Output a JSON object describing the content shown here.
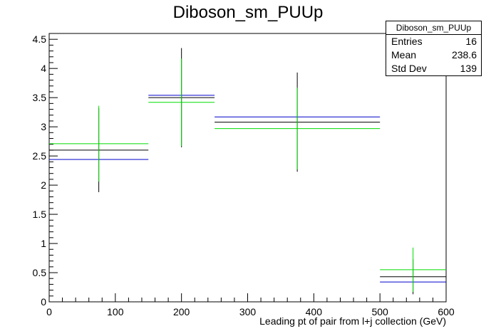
{
  "chart_data": {
    "type": "histogram",
    "title": "Diboson_sm_PUUp",
    "xlabel": "Leading pt of pair from l+j collection (GeV)",
    "ylabel": "",
    "xlim": [
      0,
      600
    ],
    "ylim": [
      0,
      4.6
    ],
    "xticks": [
      "0",
      "100",
      "200",
      "300",
      "400",
      "500",
      "600"
    ],
    "yticks": [
      "0",
      "0.5",
      "1",
      "1.5",
      "2",
      "2.5",
      "3",
      "3.5",
      "4",
      "4.5"
    ],
    "bins": [
      [
        0,
        150
      ],
      [
        150,
        250
      ],
      [
        250,
        500
      ],
      [
        500,
        600
      ]
    ],
    "series": [
      {
        "color": "#000000",
        "values": [
          2.6,
          3.5,
          3.08,
          0.43
        ],
        "errors": [
          0.72,
          0.85,
          0.85,
          0.3
        ]
      },
      {
        "color": "#0000cc",
        "values": [
          2.44,
          3.54,
          3.17,
          0.34
        ],
        "errors": [
          0,
          0,
          0,
          0
        ]
      },
      {
        "color": "#00dd00",
        "values": [
          2.71,
          3.42,
          2.97,
          0.55
        ],
        "errors": [
          0.65,
          0.75,
          0.7,
          0.38
        ]
      }
    ],
    "stats": {
      "name": "Diboson_sm_PUUp",
      "entries_label": "Entries",
      "entries": "16",
      "mean_label": "Mean",
      "mean": "238.6",
      "stddev_label": "Std Dev",
      "stddev": "139"
    }
  }
}
